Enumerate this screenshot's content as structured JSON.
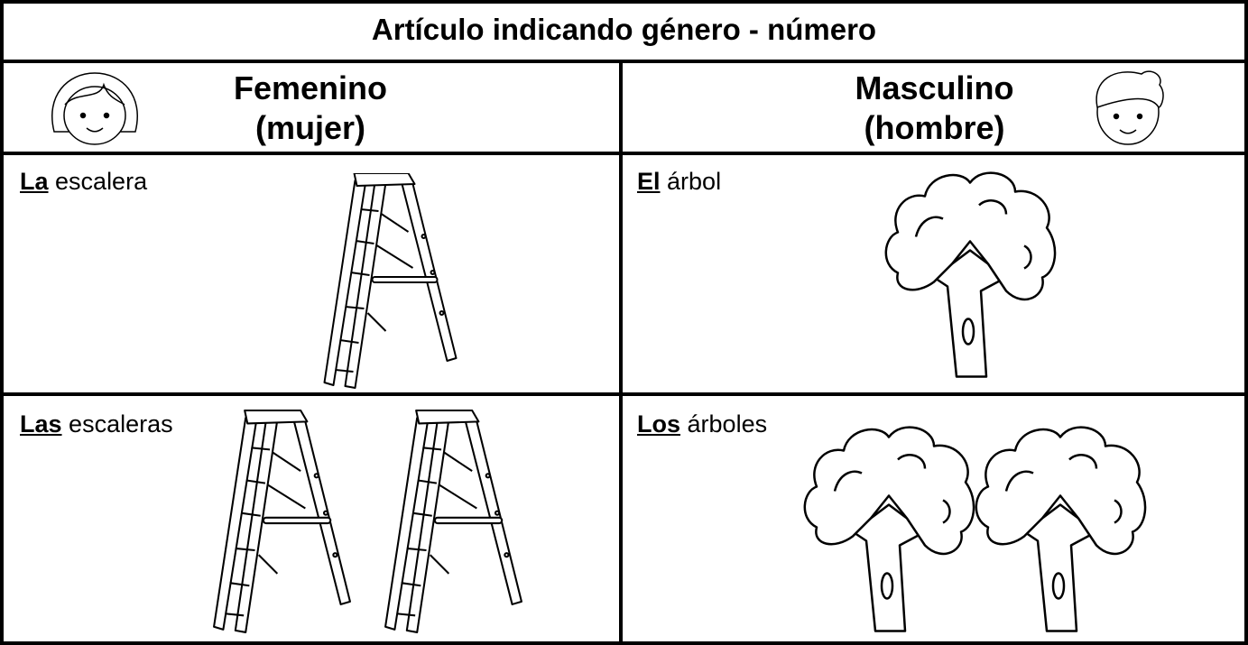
{
  "title": "Artículo indicando género - número",
  "header": {
    "left": {
      "label": "Femenino",
      "sublabel": "(mujer)"
    },
    "right": {
      "label": "Masculino",
      "sublabel": "(hombre)"
    }
  },
  "rows": [
    [
      {
        "article": "La",
        "noun": "escalera"
      },
      {
        "article": "El",
        "noun": "árbol"
      }
    ],
    [
      {
        "article": "Las",
        "noun": "escaleras"
      },
      {
        "article": "Los",
        "noun": "árboles"
      }
    ]
  ]
}
